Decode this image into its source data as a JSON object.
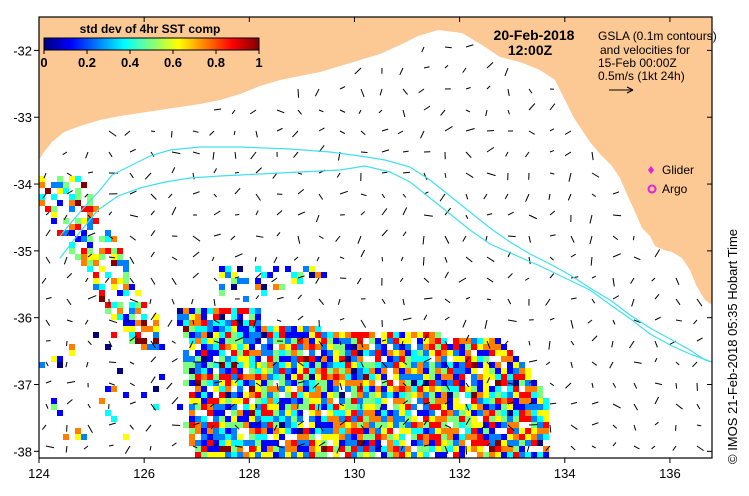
{
  "map": {
    "date": "20-Feb-2018",
    "time": "12:00Z",
    "legend_lines": [
      "GSLA (0.1m contours)",
      "and velocities for",
      "15-Feb 00:00Z",
      "0.5m/s (1kt 24h)"
    ],
    "markers": [
      {
        "label": "Glider",
        "color": "#e020e0"
      },
      {
        "label": "Argo",
        "color": "#e020e0"
      }
    ],
    "credit": "© IMOS 21-Feb-2018 05:35 Hobart Time",
    "colors": {
      "land": "#fcc894",
      "ocean": "#ffffff",
      "contour": "#40e0f0",
      "arrow": "#000000",
      "frame": "#000000"
    }
  },
  "colorbar": {
    "title": "std dev of 4hr SST comp",
    "ticks": [
      "0",
      "0.2",
      "0.4",
      "0.6",
      "0.8",
      "1"
    ],
    "stops": [
      "#00007f",
      "#0000ff",
      "#007fff",
      "#00ffff",
      "#7fff7f",
      "#ffff00",
      "#ff7f00",
      "#ff0000",
      "#7f0000"
    ],
    "range": [
      0,
      1
    ]
  },
  "chart_data": {
    "type": "map",
    "x_axis": {
      "ticks": [
        124,
        126,
        128,
        130,
        132,
        134,
        136
      ],
      "range": [
        124,
        136.8
      ]
    },
    "y_axis": {
      "ticks": [
        -32,
        -33,
        -34,
        -35,
        -36,
        -37,
        -38
      ],
      "range": [
        -38.1,
        -31.5
      ]
    },
    "x_tick_labels": [
      "124",
      "126",
      "128",
      "130",
      "132",
      "134",
      "136"
    ],
    "y_tick_labels": [
      "-32",
      "-33",
      "-34",
      "-35",
      "-36",
      "-37",
      "-38"
    ]
  }
}
